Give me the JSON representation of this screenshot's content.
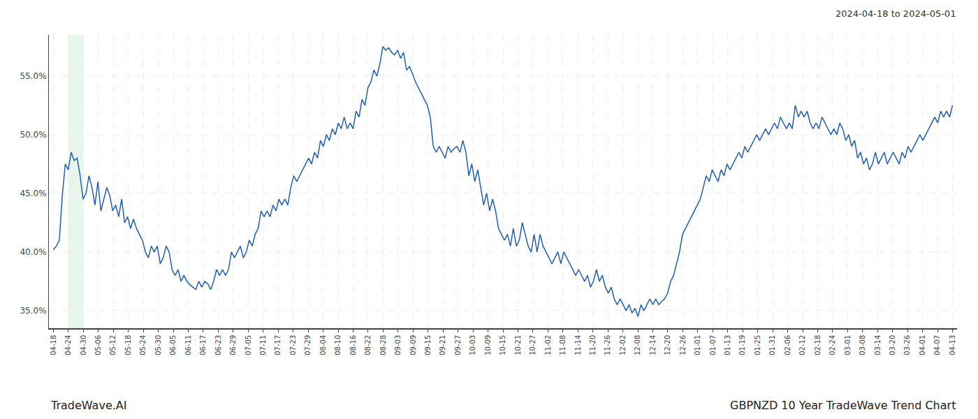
{
  "chart_data": {
    "type": "line",
    "title": "GBPNZD 10 Year TradeWave Trend Chart",
    "subtitle": "2024-04-18 to 2024-05-01",
    "annotations": [
      "TradeWave.AI"
    ],
    "color": "#2060b0",
    "grid": true,
    "xlim": [
      -0.3,
      60.3
    ],
    "xticks": [
      {
        "value": 0,
        "label": "04-18"
      },
      {
        "value": 1,
        "label": "04-24"
      },
      {
        "value": 2,
        "label": "04-30"
      },
      {
        "value": 3,
        "label": "05-06"
      },
      {
        "value": 4,
        "label": "05-12"
      },
      {
        "value": 5,
        "label": "05-18"
      },
      {
        "value": 6,
        "label": "05-24"
      },
      {
        "value": 7,
        "label": "05-30"
      },
      {
        "value": 8,
        "label": "06-05"
      },
      {
        "value": 9,
        "label": "06-11"
      },
      {
        "value": 10,
        "label": "06-17"
      },
      {
        "value": 11,
        "label": "06-23"
      },
      {
        "value": 12,
        "label": "06-29"
      },
      {
        "value": 13,
        "label": "07-05"
      },
      {
        "value": 14,
        "label": "07-11"
      },
      {
        "value": 15,
        "label": "07-17"
      },
      {
        "value": 16,
        "label": "07-23"
      },
      {
        "value": 17,
        "label": "07-29"
      },
      {
        "value": 18,
        "label": "08-04"
      },
      {
        "value": 19,
        "label": "08-10"
      },
      {
        "value": 20,
        "label": "08-16"
      },
      {
        "value": 21,
        "label": "08-22"
      },
      {
        "value": 22,
        "label": "08-28"
      },
      {
        "value": 23,
        "label": "09-03"
      },
      {
        "value": 24,
        "label": "09-09"
      },
      {
        "value": 25,
        "label": "09-15"
      },
      {
        "value": 26,
        "label": "09-21"
      },
      {
        "value": 27,
        "label": "09-27"
      },
      {
        "value": 28,
        "label": "10-03"
      },
      {
        "value": 29,
        "label": "10-09"
      },
      {
        "value": 30,
        "label": "10-15"
      },
      {
        "value": 31,
        "label": "10-21"
      },
      {
        "value": 32,
        "label": "10-27"
      },
      {
        "value": 33,
        "label": "11-02"
      },
      {
        "value": 34,
        "label": "11-08"
      },
      {
        "value": 35,
        "label": "11-14"
      },
      {
        "value": 36,
        "label": "11-20"
      },
      {
        "value": 37,
        "label": "11-26"
      },
      {
        "value": 38,
        "label": "12-02"
      },
      {
        "value": 39,
        "label": "12-08"
      },
      {
        "value": 40,
        "label": "12-14"
      },
      {
        "value": 41,
        "label": "12-20"
      },
      {
        "value": 42,
        "label": "12-26"
      },
      {
        "value": 43,
        "label": "01-01"
      },
      {
        "value": 44,
        "label": "01-07"
      },
      {
        "value": 45,
        "label": "01-13"
      },
      {
        "value": 46,
        "label": "01-19"
      },
      {
        "value": 47,
        "label": "01-25"
      },
      {
        "value": 48,
        "label": "01-31"
      },
      {
        "value": 49,
        "label": "02-06"
      },
      {
        "value": 50,
        "label": "02-12"
      },
      {
        "value": 51,
        "label": "02-18"
      },
      {
        "value": 52,
        "label": "02-24"
      },
      {
        "value": 53,
        "label": "03-01"
      },
      {
        "value": 54,
        "label": "03-08"
      },
      {
        "value": 55,
        "label": "03-14"
      },
      {
        "value": 56,
        "label": "03-20"
      },
      {
        "value": 57,
        "label": "03-26"
      },
      {
        "value": 58,
        "label": "04-01"
      },
      {
        "value": 59,
        "label": "04-07"
      },
      {
        "value": 60,
        "label": "04-13"
      }
    ],
    "ylim": [
      33.5,
      58.5
    ],
    "yticks": [
      {
        "value": 35.0,
        "label": "35.0%"
      },
      {
        "value": 40.0,
        "label": "40.0%"
      },
      {
        "value": 45.0,
        "label": "45.0%"
      },
      {
        "value": 50.0,
        "label": "50.0%"
      },
      {
        "value": 55.0,
        "label": "55.0%"
      }
    ],
    "shaded": {
      "x": [
        1,
        2
      ],
      "color": "#d4edda"
    },
    "values": [
      40.2,
      40.5,
      41.0,
      44.8,
      47.5,
      47.0,
      48.5,
      47.8,
      48.0,
      46.5,
      44.5,
      45.0,
      46.5,
      45.5,
      44.0,
      46.0,
      43.5,
      44.5,
      45.5,
      44.8,
      43.5,
      44.0,
      43.0,
      44.5,
      42.5,
      43.0,
      42.0,
      42.8,
      42.0,
      41.5,
      41.0,
      40.0,
      39.5,
      40.5,
      40.0,
      40.5,
      39.0,
      39.5,
      40.5,
      40.0,
      38.5,
      38.0,
      38.5,
      37.5,
      38.0,
      37.5,
      37.2,
      37.0,
      36.8,
      37.5,
      37.0,
      37.5,
      37.3,
      36.8,
      37.5,
      38.5,
      38.0,
      38.5,
      38.0,
      38.5,
      40.0,
      39.5,
      40.0,
      40.5,
      39.5,
      40.0,
      41.0,
      40.5,
      41.5,
      42.0,
      43.5,
      43.0,
      43.5,
      43.0,
      44.0,
      43.5,
      44.5,
      44.0,
      44.5,
      44.0,
      45.5,
      46.5,
      46.0,
      46.5,
      47.0,
      47.5,
      48.0,
      47.5,
      48.5,
      48.0,
      49.5,
      49.0,
      50.0,
      49.5,
      50.5,
      50.0,
      51.0,
      50.5,
      51.5,
      50.5,
      51.0,
      50.5,
      52.0,
      51.5,
      53.0,
      52.5,
      54.0,
      54.5,
      55.5,
      55.0,
      56.0,
      57.5,
      57.2,
      57.4,
      57.0,
      56.8,
      57.2,
      56.5,
      57.0,
      55.5,
      55.8,
      55.2,
      54.5,
      54.0,
      53.5,
      53.0,
      52.5,
      51.5,
      49.0,
      48.5,
      49.0,
      48.5,
      48.0,
      49.0,
      48.5,
      48.8,
      49.0,
      48.5,
      49.5,
      48.5,
      46.5,
      47.5,
      46.0,
      47.0,
      45.5,
      44.0,
      45.0,
      43.5,
      44.5,
      43.5,
      42.0,
      41.5,
      41.0,
      41.5,
      40.5,
      42.0,
      40.5,
      41.0,
      42.5,
      41.5,
      40.5,
      40.0,
      41.5,
      40.0,
      41.5,
      40.5,
      40.0,
      39.5,
      39.0,
      39.5,
      40.0,
      39.0,
      40.0,
      39.5,
      39.0,
      38.5,
      38.0,
      38.5,
      38.0,
      37.5,
      38.0,
      37.0,
      37.5,
      38.5,
      37.5,
      38.0,
      37.0,
      36.5,
      37.0,
      36.0,
      35.5,
      36.0,
      35.5,
      35.0,
      35.5,
      34.8,
      35.2,
      34.5,
      35.5,
      35.0,
      35.5,
      36.0,
      35.5,
      36.0,
      35.5,
      35.8,
      36.0,
      36.5,
      37.5,
      38.0,
      39.0,
      40.0,
      41.5,
      42.0,
      42.5,
      43.0,
      43.5,
      44.0,
      44.5,
      45.5,
      46.5,
      46.0,
      47.0,
      46.5,
      46.0,
      47.0,
      46.5,
      47.5,
      47.0,
      47.5,
      48.0,
      48.5,
      48.0,
      49.0,
      48.5,
      49.0,
      49.5,
      50.0,
      49.5,
      50.0,
      50.5,
      50.0,
      50.5,
      51.0,
      50.5,
      51.5,
      51.0,
      50.5,
      51.0,
      50.5,
      52.5,
      51.5,
      52.0,
      51.5,
      52.0,
      51.0,
      50.5,
      51.0,
      50.5,
      51.5,
      51.0,
      50.5,
      50.0,
      50.5,
      50.0,
      51.0,
      50.5,
      49.5,
      50.0,
      49.0,
      49.5,
      48.0,
      48.5,
      47.5,
      48.0,
      47.0,
      47.5,
      48.5,
      47.5,
      48.0,
      48.5,
      47.5,
      48.0,
      48.5,
      48.0,
      47.5,
      48.5,
      48.0,
      49.0,
      48.5,
      49.0,
      49.5,
      50.0,
      49.5,
      50.0,
      50.5,
      51.0,
      51.5,
      51.0,
      52.0,
      51.5,
      52.0,
      51.5,
      52.5
    ]
  }
}
